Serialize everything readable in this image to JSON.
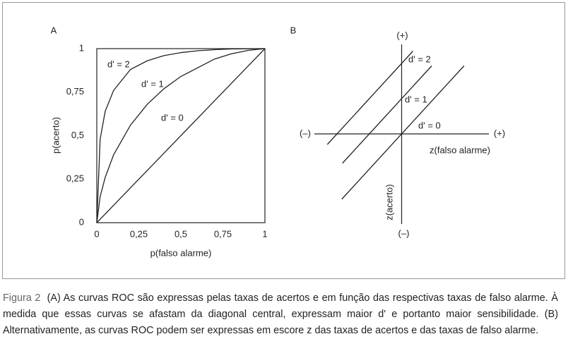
{
  "chart_data": [
    {
      "type": "line",
      "title": "A",
      "xlabel": "p(falso alarme)",
      "ylabel": "p(acerto)",
      "xlim": [
        0,
        1
      ],
      "ylim": [
        0,
        1
      ],
      "color": "#222222",
      "xticks": [
        0,
        {
          "value": 0.25,
          "label": "0,25"
        },
        {
          "value": 0.5,
          "label": "0,5"
        },
        {
          "value": 0.75,
          "label": "0,75"
        },
        1
      ],
      "yticks": [
        0,
        {
          "value": 0.25,
          "label": "0,25"
        },
        {
          "value": 0.5,
          "label": "0,5"
        },
        {
          "value": 0.75,
          "label": "0,75"
        },
        1
      ],
      "x": [
        0,
        0.02,
        0.05,
        0.1,
        0.2,
        0.3,
        0.4,
        0.5,
        0.6,
        0.7,
        0.8,
        0.9,
        1
      ],
      "series": [
        {
          "name": "d' = 2",
          "values": [
            0,
            0.48,
            0.64,
            0.76,
            0.88,
            0.93,
            0.96,
            0.977,
            0.988,
            0.994,
            0.998,
            0.999,
            1
          ]
        },
        {
          "name": "d' = 1",
          "values": [
            0,
            0.15,
            0.26,
            0.39,
            0.56,
            0.68,
            0.77,
            0.84,
            0.89,
            0.94,
            0.97,
            0.99,
            1
          ]
        },
        {
          "name": "d' = 0",
          "values": [
            0,
            0.02,
            0.05,
            0.1,
            0.2,
            0.3,
            0.4,
            0.5,
            0.6,
            0.7,
            0.8,
            0.9,
            1
          ]
        }
      ]
    },
    {
      "type": "line",
      "title": "B",
      "xlabel": "z(falso alarme)",
      "ylabel": "z(acerto)",
      "x_end_labels": [
        "(–)",
        "(+)"
      ],
      "y_end_labels": [
        "(–)",
        "(+)"
      ],
      "xlim": [
        -2.7,
        2.7
      ],
      "ylim": [
        -2.6,
        2.7
      ],
      "color": "#222222",
      "series": [
        {
          "name": "d' = 2",
          "x": [
            -2.3,
            0.35
          ],
          "values": [
            -0.3,
            2.35
          ]
        },
        {
          "name": "d' = 1",
          "x": [
            -1.83,
            0.93
          ],
          "values": [
            -0.83,
            1.93
          ]
        },
        {
          "name": "d' = 0",
          "x": [
            -1.85,
            1.93
          ],
          "values": [
            -1.85,
            1.93
          ]
        }
      ]
    }
  ],
  "caption": {
    "label": "Figura 2",
    "text": "(A) As curvas ROC são expressas pelas taxas de acertos e em função das respectivas taxas de falso alarme. À medida que essas curvas se afastam da diagonal central, expressam maior d' e portanto maior sensibilidade. (B) Alternativamente, as curvas ROC podem ser expressas em escore z das taxas de acertos e das taxas de falso alarme."
  }
}
